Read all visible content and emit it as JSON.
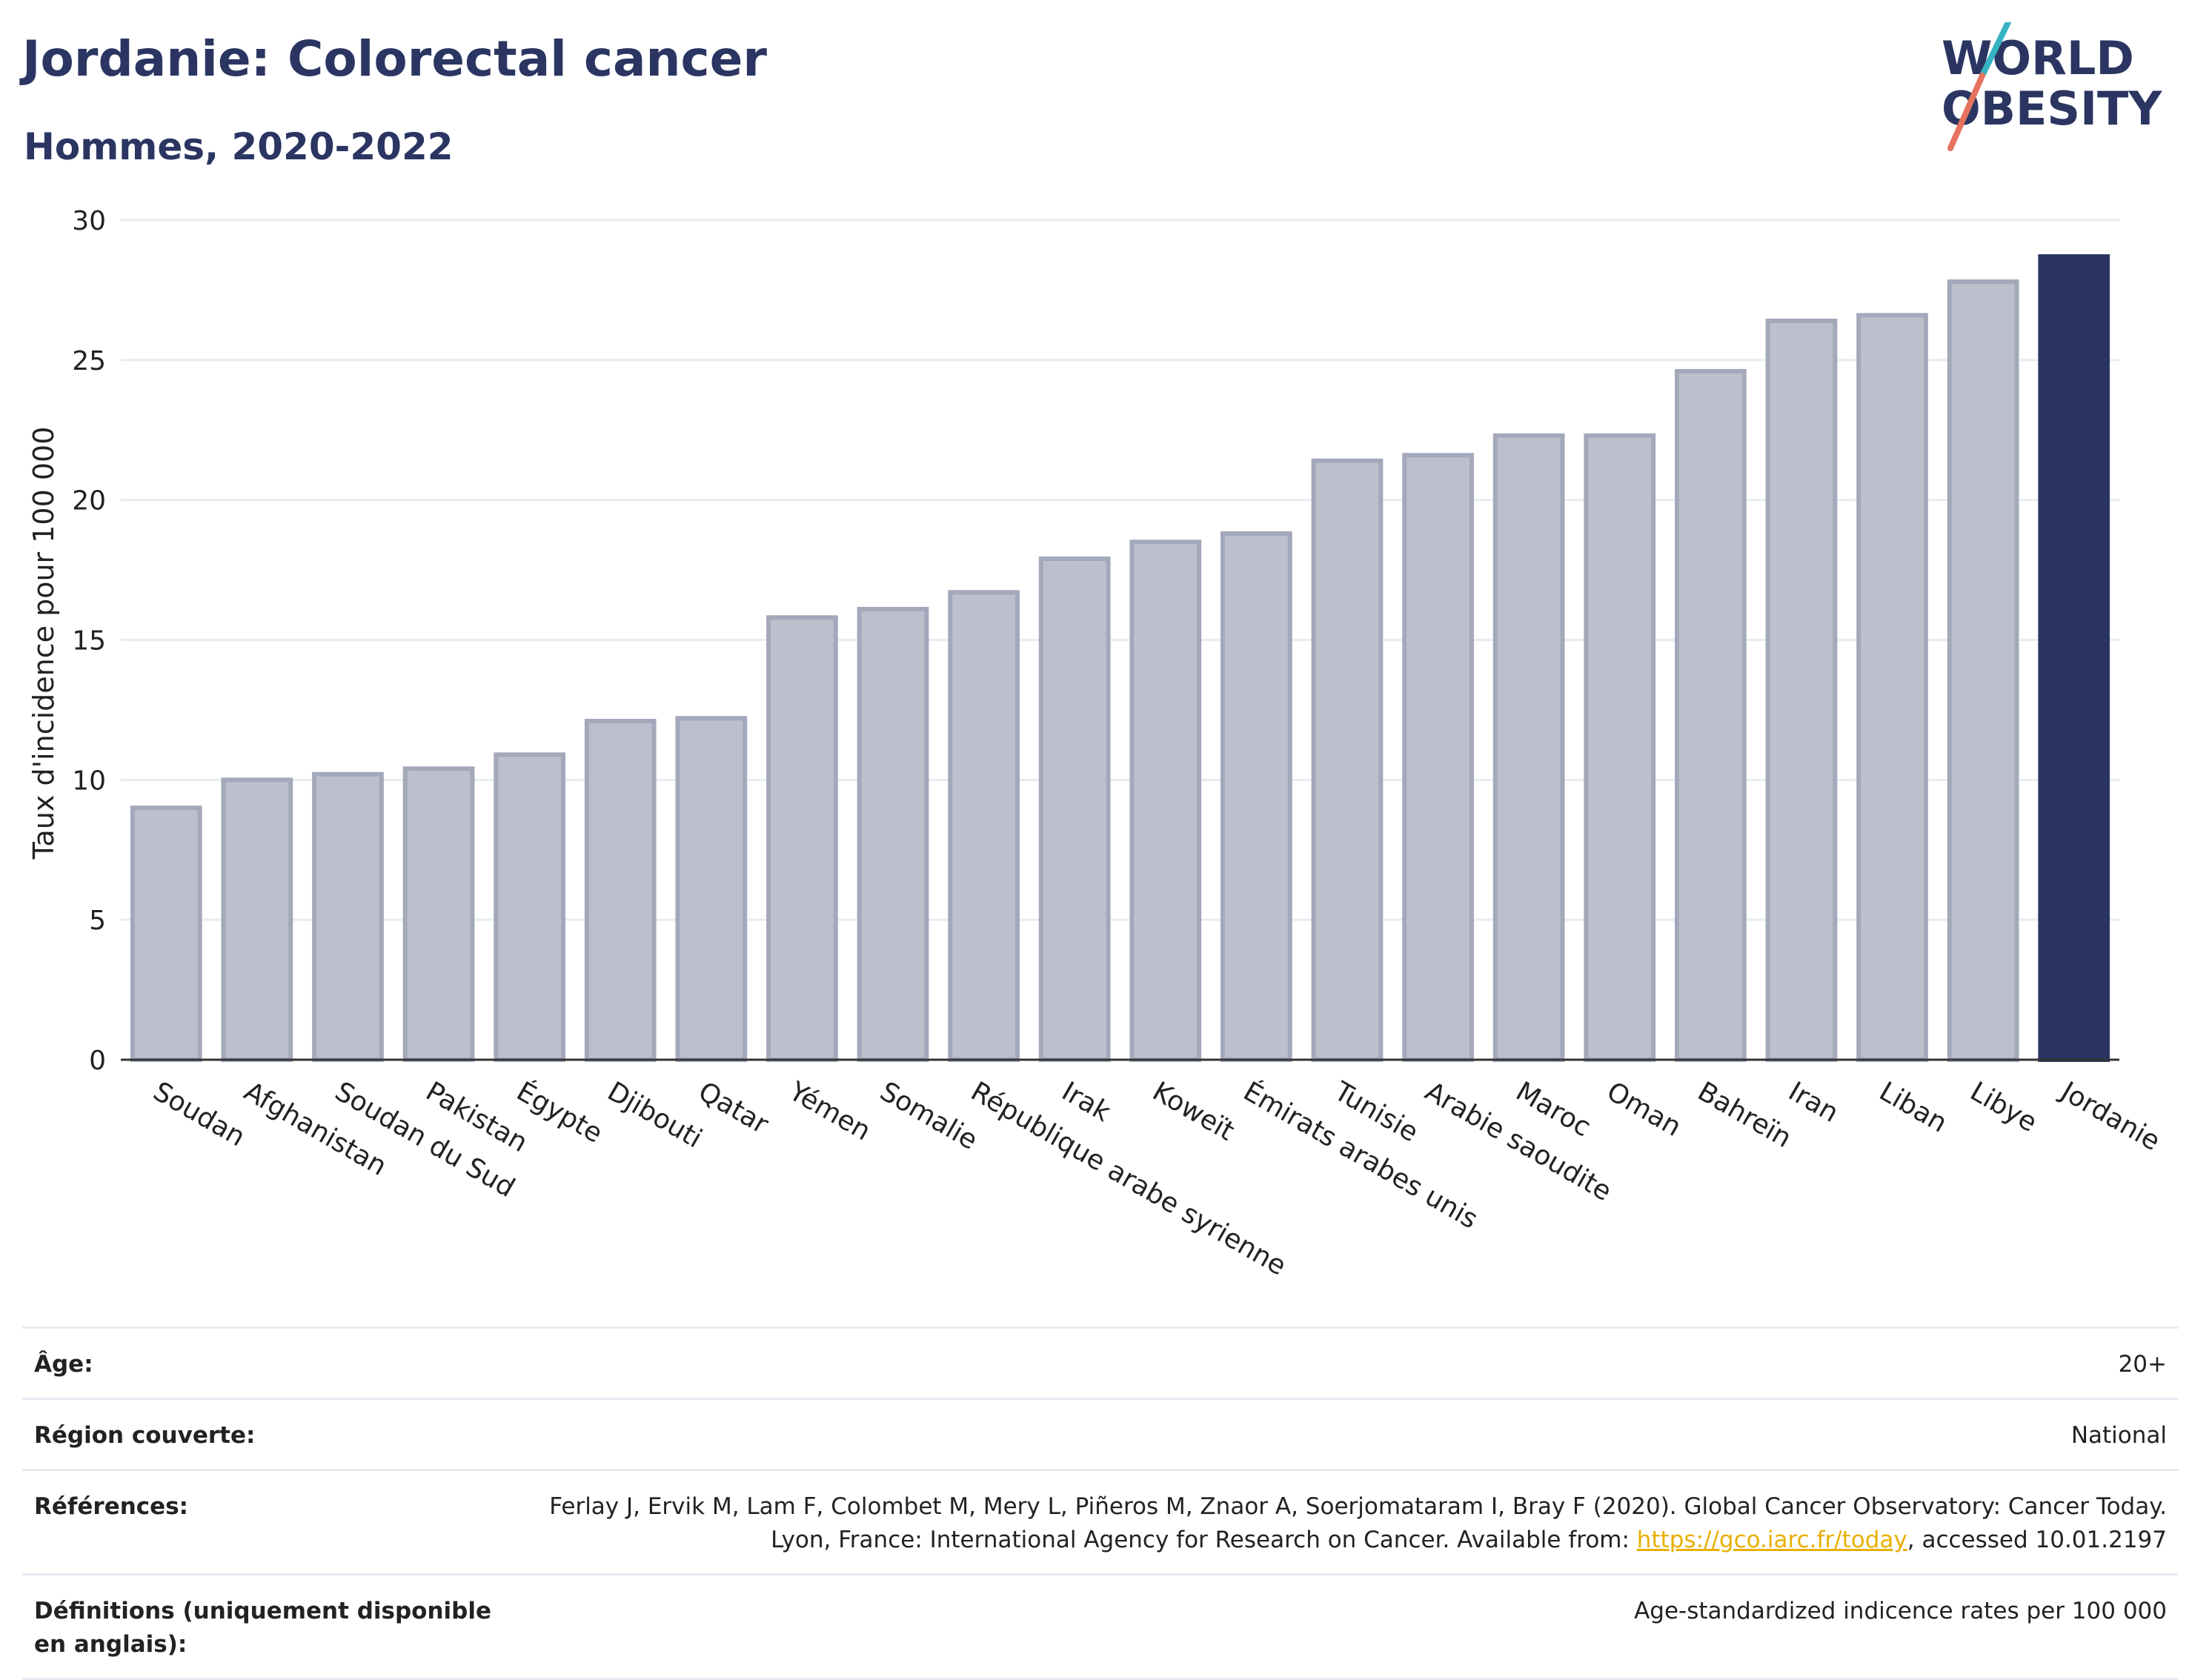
{
  "header": {
    "title": "Jordanie: Colorectal cancer",
    "subtitle": "Hommes, 2020-2022"
  },
  "logo": {
    "text": "WORLD OBESITY",
    "accent_colors": [
      "#36b3c2",
      "#e5735e"
    ],
    "text_color": "#2b3562"
  },
  "chart_data": {
    "type": "bar",
    "ylabel": "Taux d'incidence pour 100 000",
    "ylim": [
      0,
      30
    ],
    "yticks": [
      0,
      5,
      10,
      15,
      20,
      25,
      30
    ],
    "grid": true,
    "categories": [
      "Soudan",
      "Afghanistan",
      "Soudan du Sud",
      "Pakistan",
      "Égypte",
      "Djibouti",
      "Qatar",
      "Yémen",
      "Somalie",
      "République arabe syrienne",
      "Irak",
      "Koweït",
      "Émirats arabes unis",
      "Tunisie",
      "Arabie saoudite",
      "Maroc",
      "Oman",
      "Bahreïn",
      "Iran",
      "Liban",
      "Libye",
      "Jordanie"
    ],
    "values": [
      9.0,
      10.0,
      10.2,
      10.4,
      10.9,
      12.1,
      12.2,
      15.8,
      16.1,
      16.7,
      17.9,
      18.5,
      18.8,
      21.4,
      21.6,
      22.3,
      22.3,
      24.6,
      26.4,
      26.6,
      27.8,
      28.7
    ],
    "highlight": "Jordanie",
    "colors": {
      "bar": "#bcc0cd",
      "bar_border": "#a3a8bb",
      "highlight": "#2b3562",
      "grid": "#e8ebf0",
      "axis": "#333333"
    }
  },
  "info": {
    "rows": [
      {
        "label": "Âge:",
        "value": "20+"
      },
      {
        "label": "Région couverte:",
        "value": "National"
      },
      {
        "label": "Références:",
        "value_pre": "Ferlay J, Ervik M, Lam F, Colombet M, Mery L, Piñeros M, Znaor A, Soerjomataram I, Bray F (2020). Global Cancer Observatory: Cancer Today. Lyon, France: International Agency for Research on Cancer. Available from: ",
        "link": "https://gco.iarc.fr/today",
        "value_post": ", accessed 10.01.2197"
      },
      {
        "label": "Définitions (uniquement disponible en anglais):",
        "value": "Age-standardized indicence rates per 100 000"
      }
    ]
  }
}
